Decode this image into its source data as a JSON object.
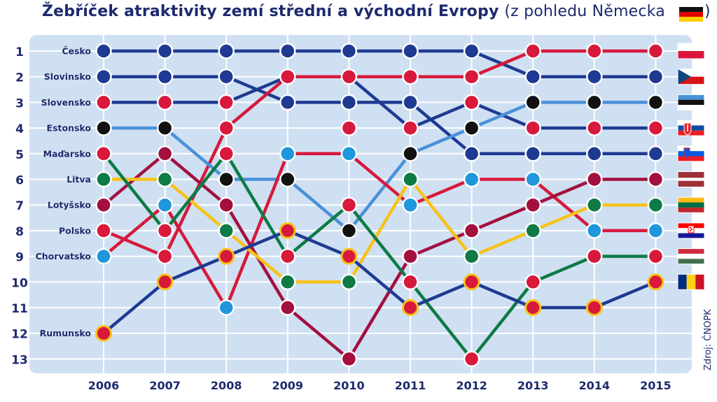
{
  "title": "Žebříček atraktivity zemí střední a východní Evropy",
  "subtitle": "(z pohledu Německa",
  "subtitle_close": ")",
  "source": "Zdroj: ČNOPK",
  "colors": {
    "background": "#cfe0f2",
    "grid": "#ffffff",
    "text": "#1d2a6e",
    "navy": "#1f3a93",
    "red": "#d7193b",
    "black": "#111111",
    "lightblue": "#1f97dc",
    "maroon": "#a3103f",
    "yellow": "#f7c21a",
    "green": "#0e7a45"
  },
  "chart_data": {
    "type": "line",
    "x": [
      "2006",
      "2007",
      "2008",
      "2009",
      "2010",
      "2011",
      "2012",
      "2013",
      "2014",
      "2015"
    ],
    "ylim": [
      1,
      13
    ],
    "y_inverted": true,
    "y_ticks": [
      "1",
      "2",
      "3",
      "4",
      "5",
      "6",
      "7",
      "8",
      "9",
      "10",
      "11",
      "12",
      "13"
    ],
    "grid": true,
    "series": [
      {
        "name": "Česko",
        "color": "#1f3a93",
        "values": [
          1,
          1,
          1,
          1,
          1,
          1,
          1,
          2,
          2,
          2
        ],
        "flag": "czech-flag-icon"
      },
      {
        "name": "Slovinsko",
        "color": "#1f3a93",
        "values": [
          2,
          2,
          2,
          3,
          3,
          3,
          5,
          5,
          5,
          5
        ],
        "flag": "slovenia-flag-icon"
      },
      {
        "name": "Slovensko",
        "color": "#1f3a93",
        "values": [
          3,
          3,
          3,
          2,
          2,
          4,
          3,
          4,
          4,
          4
        ],
        "flag": "slovakia-flag-icon"
      },
      {
        "name": "Polsko",
        "color": "#d7193b",
        "values": [
          8,
          9,
          4,
          2,
          2,
          2,
          2,
          1,
          1,
          1
        ],
        "flag": "poland-flag-icon"
      },
      {
        "name": "Estonsko",
        "color": "#4a90d9",
        "values": [
          4,
          4,
          6,
          6,
          8,
          5,
          4,
          3,
          3,
          3
        ],
        "flag": "estonia-flag-icon"
      },
      {
        "name": "Chorvatsko",
        "color": "#d7193b",
        "values": [
          9,
          7,
          11,
          5,
          5,
          7,
          6,
          6,
          8,
          8
        ],
        "flag": "croatia-flag-icon"
      },
      {
        "name": "Lotyšsko",
        "color": "#a3103f",
        "values": [
          7,
          5,
          7,
          11,
          13,
          9,
          8,
          7,
          6,
          6
        ],
        "flag": "latvia-flag-icon"
      },
      {
        "name": "Litva",
        "color": "#f7c21a",
        "values": [
          6,
          6,
          8,
          10,
          10,
          6,
          9,
          8,
          7,
          7
        ],
        "flag": "lithuania-flag-icon"
      },
      {
        "name": "Maďarsko",
        "color": "#0e7a45",
        "values": [
          5,
          8,
          5,
          9,
          7,
          10,
          13,
          10,
          9,
          9
        ],
        "flag": "hungary-flag-icon"
      },
      {
        "name": "Rumunsko",
        "color": "#1f3a93",
        "values": [
          12,
          10,
          9,
          8,
          9,
          11,
          10,
          11,
          11,
          10
        ],
        "flag": "romania-flag-icon"
      }
    ],
    "left_labels": [
      {
        "rank": 1,
        "label": "Česko"
      },
      {
        "rank": 2,
        "label": "Slovinsko"
      },
      {
        "rank": 3,
        "label": "Slovensko"
      },
      {
        "rank": 4,
        "label": "Estonsko"
      },
      {
        "rank": 5,
        "label": "Maďarsko"
      },
      {
        "rank": 6,
        "label": "Litva"
      },
      {
        "rank": 7,
        "label": "Lotyšsko"
      },
      {
        "rank": 8,
        "label": "Polsko"
      },
      {
        "rank": 9,
        "label": "Chorvatsko"
      },
      {
        "rank": 12,
        "label": "Rumunsko"
      }
    ],
    "points": [
      {
        "x": "2006",
        "rank": 1,
        "fill": "#1f3a93"
      },
      {
        "x": "2006",
        "rank": 2,
        "fill": "#1f3a93"
      },
      {
        "x": "2006",
        "rank": 3,
        "fill": "#d7193b"
      },
      {
        "x": "2006",
        "rank": 4,
        "fill": "#111111"
      },
      {
        "x": "2006",
        "rank": 5,
        "fill": "#d7193b"
      },
      {
        "x": "2006",
        "rank": 6,
        "fill": "#0e7a45"
      },
      {
        "x": "2006",
        "rank": 7,
        "fill": "#a3103f"
      },
      {
        "x": "2006",
        "rank": 8,
        "fill": "#d7193b"
      },
      {
        "x": "2006",
        "rank": 9,
        "fill": "#1f97dc"
      },
      {
        "x": "2006",
        "rank": 12,
        "fill": "#d7193b",
        "ring": "#f7c21a"
      },
      {
        "x": "2007",
        "rank": 1,
        "fill": "#1f3a93"
      },
      {
        "x": "2007",
        "rank": 2,
        "fill": "#1f3a93"
      },
      {
        "x": "2007",
        "rank": 3,
        "fill": "#d7193b"
      },
      {
        "x": "2007",
        "rank": 4,
        "fill": "#111111"
      },
      {
        "x": "2007",
        "rank": 5,
        "fill": "#a3103f"
      },
      {
        "x": "2007",
        "rank": 6,
        "fill": "#0e7a45"
      },
      {
        "x": "2007",
        "rank": 7,
        "fill": "#1f97dc"
      },
      {
        "x": "2007",
        "rank": 8,
        "fill": "#d7193b"
      },
      {
        "x": "2007",
        "rank": 9,
        "fill": "#d7193b"
      },
      {
        "x": "2007",
        "rank": 10,
        "fill": "#d7193b",
        "ring": "#f7c21a"
      },
      {
        "x": "2008",
        "rank": 1,
        "fill": "#1f3a93"
      },
      {
        "x": "2008",
        "rank": 2,
        "fill": "#1f3a93"
      },
      {
        "x": "2008",
        "rank": 3,
        "fill": "#d7193b"
      },
      {
        "x": "2008",
        "rank": 4,
        "fill": "#d7193b"
      },
      {
        "x": "2008",
        "rank": 5,
        "fill": "#d7193b"
      },
      {
        "x": "2008",
        "rank": 6,
        "fill": "#111111"
      },
      {
        "x": "2008",
        "rank": 7,
        "fill": "#a3103f"
      },
      {
        "x": "2008",
        "rank": 8,
        "fill": "#0e7a45"
      },
      {
        "x": "2008",
        "rank": 9,
        "fill": "#d7193b",
        "ring": "#f7c21a"
      },
      {
        "x": "2008",
        "rank": 11,
        "fill": "#1f97dc"
      },
      {
        "x": "2009",
        "rank": 1,
        "fill": "#1f3a93"
      },
      {
        "x": "2009",
        "rank": 2,
        "fill": "#d7193b"
      },
      {
        "x": "2009",
        "rank": 3,
        "fill": "#1f3a93"
      },
      {
        "x": "2009",
        "rank": 5,
        "fill": "#1f97dc"
      },
      {
        "x": "2009",
        "rank": 6,
        "fill": "#111111"
      },
      {
        "x": "2009",
        "rank": 8,
        "fill": "#d7193b",
        "ring": "#f7c21a"
      },
      {
        "x": "2009",
        "rank": 9,
        "fill": "#d7193b"
      },
      {
        "x": "2009",
        "rank": 10,
        "fill": "#0e7a45"
      },
      {
        "x": "2009",
        "rank": 11,
        "fill": "#a3103f"
      },
      {
        "x": "2010",
        "rank": 1,
        "fill": "#1f3a93"
      },
      {
        "x": "2010",
        "rank": 2,
        "fill": "#d7193b"
      },
      {
        "x": "2010",
        "rank": 3,
        "fill": "#1f3a93"
      },
      {
        "x": "2010",
        "rank": 4,
        "fill": "#d7193b"
      },
      {
        "x": "2010",
        "rank": 5,
        "fill": "#1f97dc"
      },
      {
        "x": "2010",
        "rank": 7,
        "fill": "#d7193b"
      },
      {
        "x": "2010",
        "rank": 8,
        "fill": "#111111"
      },
      {
        "x": "2010",
        "rank": 9,
        "fill": "#d7193b",
        "ring": "#f7c21a"
      },
      {
        "x": "2010",
        "rank": 10,
        "fill": "#0e7a45"
      },
      {
        "x": "2010",
        "rank": 13,
        "fill": "#a3103f"
      },
      {
        "x": "2011",
        "rank": 1,
        "fill": "#1f3a93"
      },
      {
        "x": "2011",
        "rank": 2,
        "fill": "#d7193b"
      },
      {
        "x": "2011",
        "rank": 3,
        "fill": "#1f3a93"
      },
      {
        "x": "2011",
        "rank": 4,
        "fill": "#d7193b"
      },
      {
        "x": "2011",
        "rank": 5,
        "fill": "#111111"
      },
      {
        "x": "2011",
        "rank": 6,
        "fill": "#0e7a45"
      },
      {
        "x": "2011",
        "rank": 7,
        "fill": "#1f97dc"
      },
      {
        "x": "2011",
        "rank": 9,
        "fill": "#a3103f"
      },
      {
        "x": "2011",
        "rank": 10,
        "fill": "#d7193b"
      },
      {
        "x": "2011",
        "rank": 11,
        "fill": "#d7193b",
        "ring": "#f7c21a"
      },
      {
        "x": "2012",
        "rank": 1,
        "fill": "#1f3a93"
      },
      {
        "x": "2012",
        "rank": 2,
        "fill": "#d7193b"
      },
      {
        "x": "2012",
        "rank": 3,
        "fill": "#d7193b"
      },
      {
        "x": "2012",
        "rank": 4,
        "fill": "#111111"
      },
      {
        "x": "2012",
        "rank": 5,
        "fill": "#1f3a93"
      },
      {
        "x": "2012",
        "rank": 6,
        "fill": "#1f97dc"
      },
      {
        "x": "2012",
        "rank": 8,
        "fill": "#a3103f"
      },
      {
        "x": "2012",
        "rank": 9,
        "fill": "#0e7a45"
      },
      {
        "x": "2012",
        "rank": 10,
        "fill": "#d7193b",
        "ring": "#f7c21a"
      },
      {
        "x": "2012",
        "rank": 13,
        "fill": "#d7193b"
      },
      {
        "x": "2013",
        "rank": 1,
        "fill": "#d7193b"
      },
      {
        "x": "2013",
        "rank": 2,
        "fill": "#1f3a93"
      },
      {
        "x": "2013",
        "rank": 3,
        "fill": "#111111"
      },
      {
        "x": "2013",
        "rank": 4,
        "fill": "#d7193b"
      },
      {
        "x": "2013",
        "rank": 5,
        "fill": "#1f3a93"
      },
      {
        "x": "2013",
        "rank": 6,
        "fill": "#1f97dc"
      },
      {
        "x": "2013",
        "rank": 7,
        "fill": "#a3103f"
      },
      {
        "x": "2013",
        "rank": 8,
        "fill": "#0e7a45"
      },
      {
        "x": "2013",
        "rank": 10,
        "fill": "#d7193b"
      },
      {
        "x": "2013",
        "rank": 11,
        "fill": "#d7193b",
        "ring": "#f7c21a"
      },
      {
        "x": "2014",
        "rank": 1,
        "fill": "#d7193b"
      },
      {
        "x": "2014",
        "rank": 2,
        "fill": "#1f3a93"
      },
      {
        "x": "2014",
        "rank": 3,
        "fill": "#111111"
      },
      {
        "x": "2014",
        "rank": 4,
        "fill": "#d7193b"
      },
      {
        "x": "2014",
        "rank": 5,
        "fill": "#1f3a93"
      },
      {
        "x": "2014",
        "rank": 6,
        "fill": "#a3103f"
      },
      {
        "x": "2014",
        "rank": 7,
        "fill": "#0e7a45"
      },
      {
        "x": "2014",
        "rank": 8,
        "fill": "#1f97dc"
      },
      {
        "x": "2014",
        "rank": 9,
        "fill": "#d7193b"
      },
      {
        "x": "2014",
        "rank": 11,
        "fill": "#d7193b",
        "ring": "#f7c21a"
      },
      {
        "x": "2015",
        "rank": 1,
        "fill": "#d7193b"
      },
      {
        "x": "2015",
        "rank": 2,
        "fill": "#1f3a93"
      },
      {
        "x": "2015",
        "rank": 3,
        "fill": "#111111"
      },
      {
        "x": "2015",
        "rank": 4,
        "fill": "#d7193b"
      },
      {
        "x": "2015",
        "rank": 5,
        "fill": "#1f3a93"
      },
      {
        "x": "2015",
        "rank": 6,
        "fill": "#a3103f"
      },
      {
        "x": "2015",
        "rank": 7,
        "fill": "#0e7a45"
      },
      {
        "x": "2015",
        "rank": 8,
        "fill": "#1f97dc"
      },
      {
        "x": "2015",
        "rank": 9,
        "fill": "#d7193b"
      },
      {
        "x": "2015",
        "rank": 10,
        "fill": "#d7193b",
        "ring": "#f7c21a"
      }
    ],
    "right_flags": [
      "poland-flag-icon",
      "czech-flag-icon",
      "estonia-flag-icon",
      "slovakia-flag-icon",
      "slovenia-flag-icon",
      "latvia-flag-icon",
      "lithuania-flag-icon",
      "croatia-flag-icon",
      "hungary-flag-icon",
      "romania-flag-icon"
    ]
  }
}
